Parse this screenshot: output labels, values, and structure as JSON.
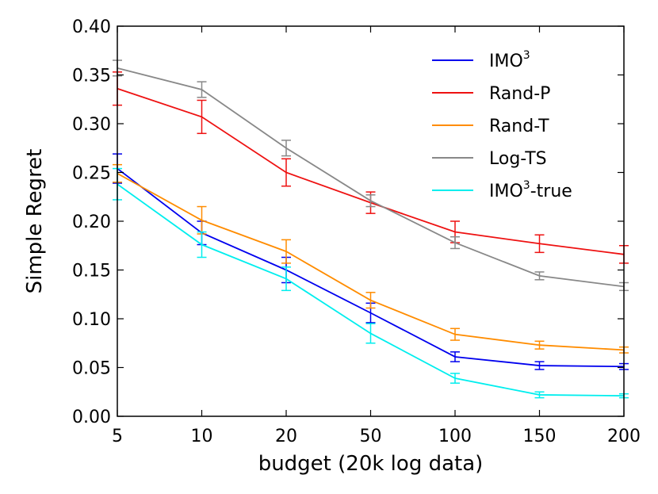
{
  "chart_data": {
    "type": "line",
    "title": "",
    "xlabel": "budget (20k log data)",
    "ylabel": "Simple Regret",
    "x": [
      "5",
      "10",
      "20",
      "50",
      "100",
      "150",
      "200"
    ],
    "ylim": [
      0.0,
      0.4
    ],
    "yticks": [
      "0.00",
      "0.05",
      "0.10",
      "0.15",
      "0.20",
      "0.25",
      "0.30",
      "0.35",
      "0.40"
    ],
    "grid": false,
    "legend_position": "top-right",
    "series": [
      {
        "name": "IMO",
        "sup": "3",
        "suffix": "",
        "color": "#0000ee",
        "values": [
          0.254,
          0.188,
          0.15,
          0.106,
          0.061,
          0.052,
          0.051
        ],
        "errors": [
          0.015,
          0.012,
          0.013,
          0.01,
          0.005,
          0.004,
          0.003
        ]
      },
      {
        "name": "Rand-P",
        "sup": "",
        "suffix": "",
        "color": "#ee1111",
        "values": [
          0.336,
          0.307,
          0.25,
          0.219,
          0.189,
          0.177,
          0.166
        ],
        "errors": [
          0.017,
          0.017,
          0.014,
          0.011,
          0.011,
          0.009,
          0.009
        ]
      },
      {
        "name": "Rand-T",
        "sup": "",
        "suffix": "",
        "color": "#ff8c00",
        "values": [
          0.249,
          0.201,
          0.169,
          0.119,
          0.084,
          0.073,
          0.068
        ],
        "errors": [
          0.009,
          0.014,
          0.012,
          0.008,
          0.006,
          0.004,
          0.003
        ]
      },
      {
        "name": "Log-TS",
        "sup": "",
        "suffix": "",
        "color": "#888888",
        "values": [
          0.357,
          0.335,
          0.275,
          0.221,
          0.178,
          0.144,
          0.133
        ],
        "errors": [
          0.008,
          0.008,
          0.008,
          0.006,
          0.006,
          0.004,
          0.004
        ]
      },
      {
        "name": "IMO",
        "sup": "3",
        "suffix": "-true",
        "color": "#00eeee",
        "values": [
          0.238,
          0.176,
          0.141,
          0.085,
          0.039,
          0.022,
          0.021
        ],
        "errors": [
          0.016,
          0.013,
          0.012,
          0.01,
          0.005,
          0.003,
          0.002
        ]
      }
    ]
  }
}
